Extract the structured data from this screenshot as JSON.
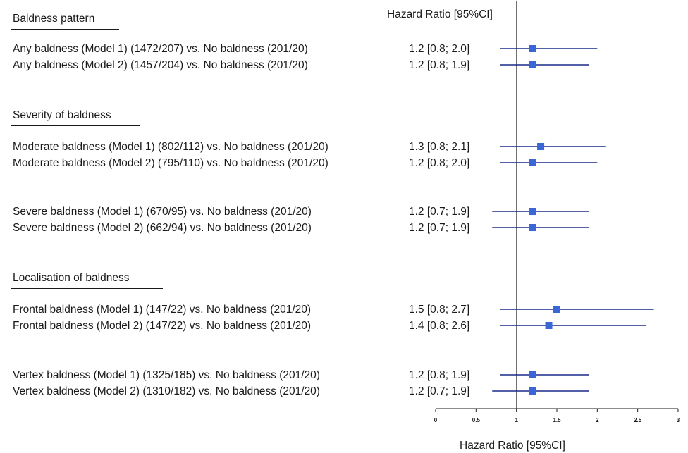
{
  "chart_data": {
    "type": "forest",
    "column_header": "Hazard Ratio [95%CI]",
    "xlabel": "Hazard Ratio [95%CI]",
    "xlim": [
      0,
      3
    ],
    "xticks": [
      "0",
      "0.5",
      "1",
      "1.5",
      "2",
      "2.5",
      "3"
    ],
    "reference_line": 1,
    "marker_color": "#3a66d6",
    "line_color": "#1a2b8c",
    "sections": [
      {
        "title": "Baldness pattern",
        "rows": [
          {
            "label": "Any baldness (Model 1) (1472/207) vs. No baldness (201/20)",
            "text": "1.2 [0.8; 2.0]",
            "hr": 1.2,
            "lo": 0.8,
            "hi": 2.0
          },
          {
            "label": "Any baldness (Model 2) (1457/204) vs. No baldness (201/20)",
            "text": "1.2 [0.8; 1.9]",
            "hr": 1.2,
            "lo": 0.8,
            "hi": 1.9
          }
        ]
      },
      {
        "title": "Severity of baldness",
        "rows": [
          {
            "label": "Moderate baldness (Model 1) (802/112) vs. No baldness (201/20)",
            "text": "1.3 [0.8; 2.1]",
            "hr": 1.3,
            "lo": 0.8,
            "hi": 2.1
          },
          {
            "label": "Moderate baldness (Model 2) (795/110) vs. No baldness (201/20)",
            "text": "1.2 [0.8; 2.0]",
            "hr": 1.2,
            "lo": 0.8,
            "hi": 2.0
          },
          {
            "label": "Severe baldness (Model 1) (670/95) vs. No baldness (201/20)",
            "text": "1.2 [0.7; 1.9]",
            "hr": 1.2,
            "lo": 0.7,
            "hi": 1.9
          },
          {
            "label": "Severe baldness (Model 2) (662/94) vs. No baldness (201/20)",
            "text": "1.2 [0.7; 1.9]",
            "hr": 1.2,
            "lo": 0.7,
            "hi": 1.9
          }
        ]
      },
      {
        "title": "Localisation of baldness",
        "rows": [
          {
            "label": "Frontal baldness (Model 1) (147/22) vs. No baldness (201/20)",
            "text": "1.5 [0.8; 2.7]",
            "hr": 1.5,
            "lo": 0.8,
            "hi": 2.7
          },
          {
            "label": "Frontal baldness (Model 2) (147/22) vs. No baldness (201/20)",
            "text": "1.4 [0.8; 2.6]",
            "hr": 1.4,
            "lo": 0.8,
            "hi": 2.6
          },
          {
            "label": "Vertex baldness (Model 1) (1325/185) vs. No baldness (201/20)",
            "text": "1.2 [0.8; 1.9]",
            "hr": 1.2,
            "lo": 0.8,
            "hi": 1.9
          },
          {
            "label": "Vertex baldness (Model 2) (1310/182) vs. No baldness (201/20)",
            "text": "1.2 [0.7; 1.9]",
            "hr": 1.2,
            "lo": 0.7,
            "hi": 1.9
          }
        ]
      }
    ]
  }
}
